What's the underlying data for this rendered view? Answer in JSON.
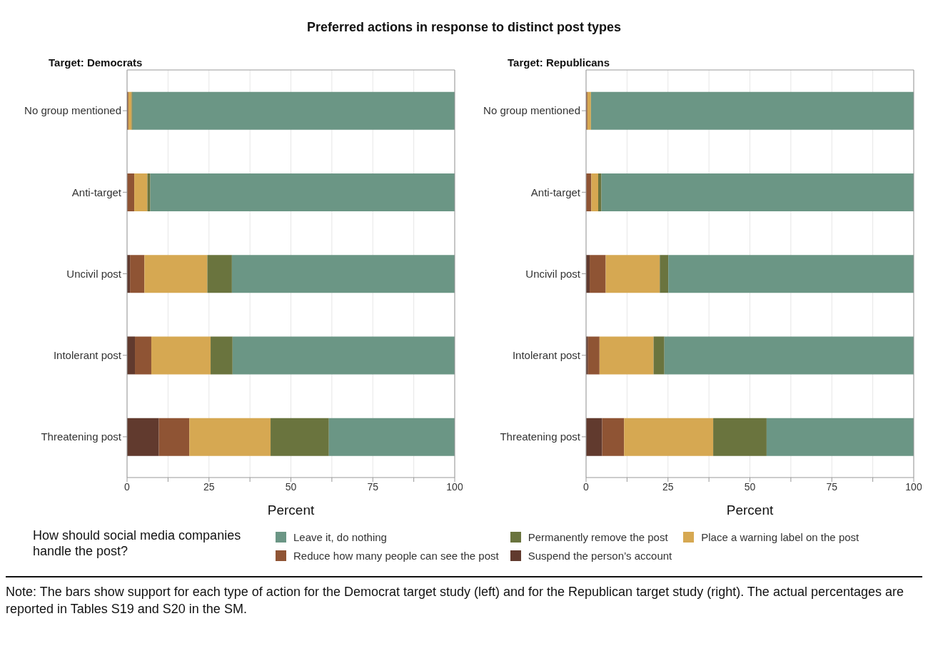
{
  "chart_data": [
    {
      "type": "bar",
      "title": "Preferred actions in response to distinct post types",
      "subtitle": "Target: Democrats",
      "orientation": "horizontal",
      "stacked": true,
      "categories": [
        "No group mentioned",
        "Anti-target",
        "Uncivil post",
        "Intolerant post",
        "Threatening post"
      ],
      "xlabel": "Percent",
      "xlim": [
        0,
        100
      ],
      "xticks": [
        0,
        {
          "value": 12.5,
          "label": null
        },
        25,
        {
          "value": 37.5,
          "label": null
        },
        50,
        {
          "value": 62.5,
          "label": null
        },
        75,
        {
          "value": 87.5,
          "label": null
        },
        100
      ],
      "grid": "x",
      "legend": "bottom",
      "legend_title": "How should social media companies handle the post?",
      "series": [
        {
          "name": "Suspend the person’s account",
          "color": "#613a2e",
          "values": [
            0.2,
            0,
            0.9,
            2.4,
            9.7
          ]
        },
        {
          "name": "Reduce how many people can see the post",
          "color": "#8f5434",
          "values": [
            0.2,
            2.2,
            4.4,
            5.0,
            9.3
          ]
        },
        {
          "name": "Place a warning label on the post",
          "color": "#d6a852",
          "values": [
            1.0,
            4.0,
            19.2,
            18.1,
            24.8
          ]
        },
        {
          "name": "Permanently remove the post",
          "color": "#6a743e",
          "values": [
            0.3,
            0.9,
            7.5,
            6.7,
            17.8
          ]
        },
        {
          "name": "Leave it, do nothing",
          "color": "#6b9685",
          "values": [
            98.3,
            92.9,
            68.0,
            67.8,
            38.4
          ]
        }
      ],
      "annotations": [
        "Note: The bars show support for each type of action for the Democrat target study (left) and for the Republican target study (right). The actual percentages are reported in Tables S19 and S20 in the SM."
      ]
    },
    {
      "type": "bar",
      "subtitle": "Target: Republicans",
      "orientation": "horizontal",
      "stacked": true,
      "categories": [
        "No group mentioned",
        "Anti-target",
        "Uncivil post",
        "Intolerant post",
        "Threatening post"
      ],
      "xlabel": "Percent",
      "xlim": [
        0,
        100
      ],
      "xticks": [
        0,
        {
          "value": 12.5,
          "label": null
        },
        25,
        {
          "value": 37.5,
          "label": null
        },
        50,
        {
          "value": 62.5,
          "label": null
        },
        75,
        {
          "value": 87.5,
          "label": null
        },
        100
      ],
      "grid": "x",
      "series": [
        {
          "color": "#613a2e",
          "values": [
            0,
            0,
            1.1,
            0.6,
            4.9
          ]
        },
        {
          "color": "#8f5434",
          "values": [
            0.4,
            1.6,
            4.9,
            3.5,
            6.7
          ]
        },
        {
          "color": "#d6a852",
          "values": [
            1.1,
            2.1,
            16.5,
            16.5,
            27.2
          ]
        },
        {
          "color": "#6a743e",
          "values": [
            0,
            1.0,
            2.6,
            3.3,
            16.3
          ]
        },
        {
          "color": "#6b9685",
          "values": [
            98.5,
            95.3,
            74.9,
            76.1,
            44.9
          ]
        }
      ]
    }
  ]
}
